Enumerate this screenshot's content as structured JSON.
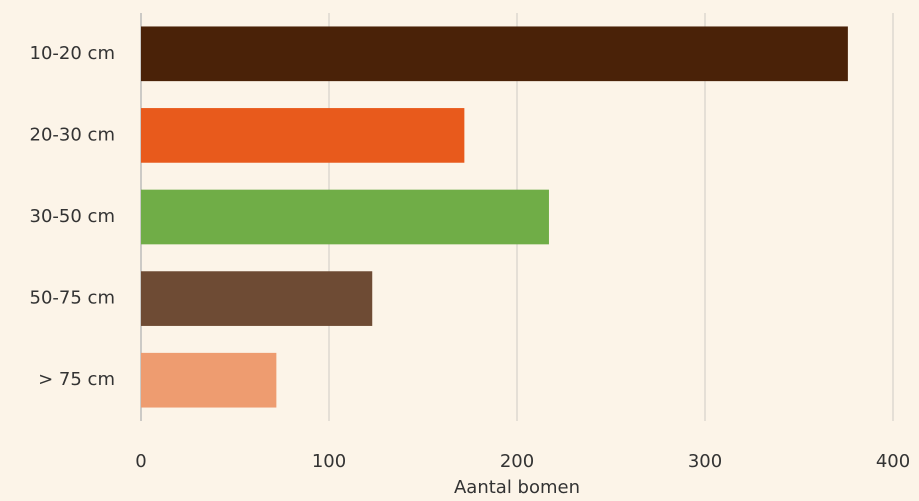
{
  "chart_data": {
    "type": "hbar",
    "categories": [
      "10-20 cm",
      "20-30 cm",
      "30-50 cm",
      "50-75 cm",
      "> 75 cm"
    ],
    "values": [
      376,
      172,
      217,
      123,
      72
    ],
    "colors": [
      "#4a2208",
      "#e85a1c",
      "#70ad47",
      "#6e4b34",
      "#ee9c70"
    ],
    "xlabel": "Aantal bomen",
    "xlim": [
      0,
      400
    ],
    "xticks": [
      0,
      100,
      200,
      300,
      400
    ],
    "grid": true
  }
}
